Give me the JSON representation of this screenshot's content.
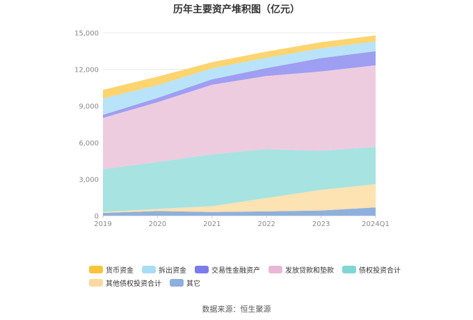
{
  "chart_data": {
    "type": "area",
    "stacked": true,
    "title": "历年主要资产堆积图（亿元）",
    "categories": [
      "2019",
      "2020",
      "2021",
      "2022",
      "2023",
      "2024Q1"
    ],
    "y_ticks": [
      "0",
      "3,000",
      "6,000",
      "9,000",
      "12,000",
      "15,000"
    ],
    "ylim": [
      0,
      15000
    ],
    "grid": "horizontal",
    "legend_position": "bottom",
    "series": [
      {
        "name": "其它",
        "color": "#8fb0dc",
        "values": [
          230,
          380,
          300,
          350,
          420,
          680
        ]
      },
      {
        "name": "其他债权投资合计",
        "color": "#fde2b2",
        "values": [
          80,
          170,
          480,
          1100,
          1700,
          1900
        ]
      },
      {
        "name": "债权投资合计",
        "color": "#a6e3e1",
        "values": [
          3500,
          3850,
          4250,
          4000,
          3200,
          3050
        ]
      },
      {
        "name": "发放贷款和垫款",
        "color": "#eeccdf",
        "values": [
          4200,
          4900,
          5700,
          6000,
          6500,
          6700
        ]
      },
      {
        "name": "交易性金融资产",
        "color": "#9e9ef2",
        "values": [
          250,
          350,
          450,
          650,
          1100,
          1150
        ]
      },
      {
        "name": "拆出资金",
        "color": "#b9e3f9",
        "values": [
          1350,
          1050,
          900,
          850,
          800,
          800
        ]
      },
      {
        "name": "货币资金",
        "color": "#fdd46f",
        "values": [
          700,
          700,
          500,
          500,
          500,
          500
        ]
      }
    ]
  },
  "legend_order": [
    [
      "货币资金",
      "拆出资金",
      "交易性金融资产",
      "发放贷款和垫款",
      "债权投资合计"
    ],
    [
      "其他债权投资合计",
      "其它"
    ]
  ],
  "legend_colors": {
    "货币资金": "#fbc43a",
    "拆出资金": "#a9dcf7",
    "交易性金融资产": "#7b7bee",
    "发放贷款和垫款": "#e8b8d6",
    "债权投资合计": "#7fd6d4",
    "其他债权投资合计": "#fcd9a0",
    "其它": "#8eaedc"
  },
  "source": "数据来源：恒生聚源"
}
